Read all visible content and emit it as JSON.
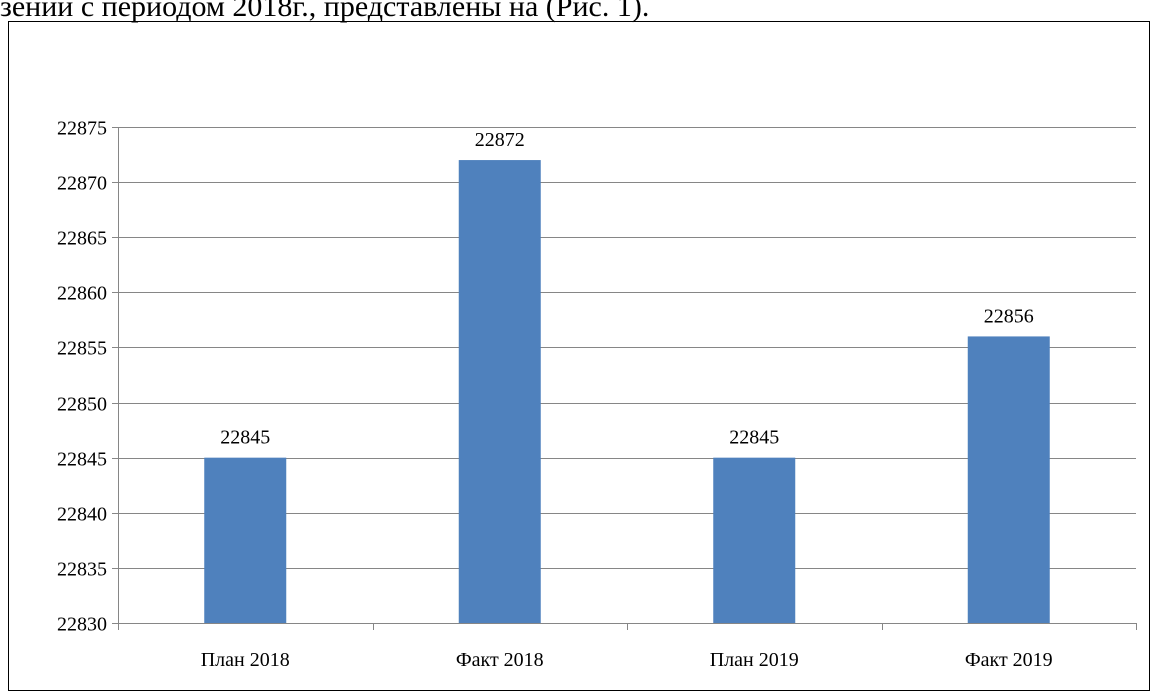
{
  "page": {
    "caption_fragment": "зений с периодом 2018г., представлены на (Рис. 1)."
  },
  "chart_data": {
    "type": "bar",
    "categories": [
      "План 2018",
      "Факт 2018",
      "План 2019",
      "Факт 2019"
    ],
    "values": [
      22845,
      22872,
      22845,
      22856
    ],
    "data_labels": [
      "22845",
      "22872",
      "22845",
      "22856"
    ],
    "title": "",
    "xlabel": "",
    "ylabel": "",
    "ylim": [
      22830,
      22875
    ],
    "ytick_step": 5,
    "yticks": [
      "22830",
      "22835",
      "22840",
      "22845",
      "22850",
      "22855",
      "22860",
      "22865",
      "22870",
      "22875"
    ],
    "grid": true,
    "legend": "none",
    "bar_color": "#4f81bd",
    "grid_color": "#868686"
  }
}
